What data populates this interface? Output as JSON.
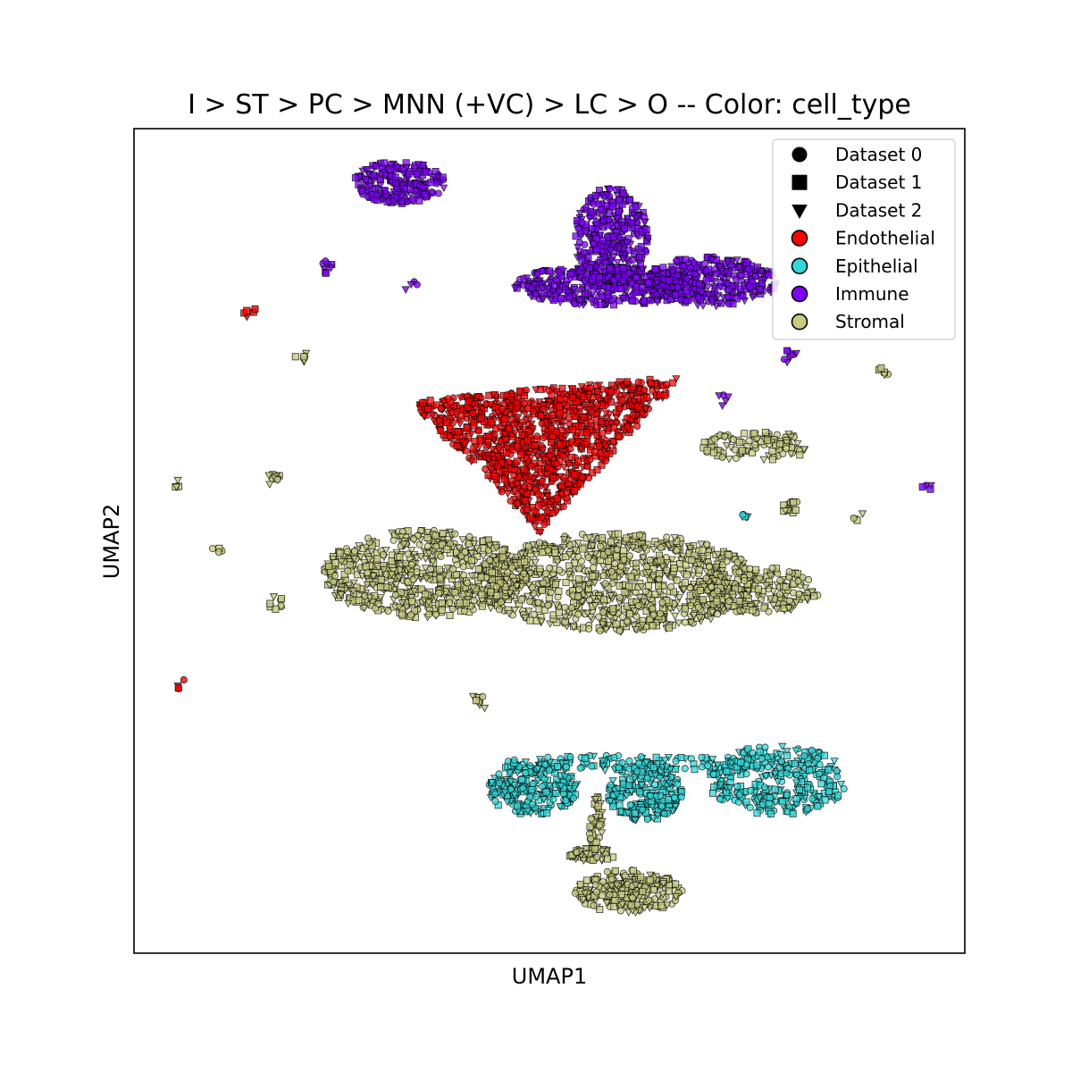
{
  "chart_data": {
    "type": "scatter",
    "title": "I > ST > PC > MNN (+VC) > LC > O -- Color: cell_type",
    "xlabel": "UMAP1",
    "ylabel": "UMAP2",
    "xlim": [
      0,
      100
    ],
    "ylim": [
      0,
      100
    ],
    "grid": false,
    "ticks": "none",
    "legend_placement": "top-right",
    "legend": {
      "markers": [
        {
          "label": "Dataset 0",
          "shape": "circle"
        },
        {
          "label": "Dataset 1",
          "shape": "square"
        },
        {
          "label": "Dataset 2",
          "shape": "triangle-down"
        }
      ],
      "colors": [
        {
          "label": "Endothelial",
          "color": "#ff0000"
        },
        {
          "label": "Epithelial",
          "color": "#30d8d8"
        },
        {
          "label": "Immune",
          "color": "#7f00ff"
        },
        {
          "label": "Stromal",
          "color": "#c8cc80"
        }
      ]
    },
    "clusters": [
      {
        "cell_type": "Immune",
        "shape": "ellipse",
        "cx": 32,
        "cy": 93.5,
        "rx": 5.5,
        "ry": 2.6,
        "n": 220
      },
      {
        "cell_type": "Immune",
        "shape": "ellipse",
        "cx": 57,
        "cy": 81,
        "rx": 11.5,
        "ry": 2.4,
        "n": 420
      },
      {
        "cell_type": "Immune",
        "shape": "ellipse",
        "cx": 57.5,
        "cy": 86.5,
        "rx": 4.5,
        "ry": 6.5,
        "n": 360
      },
      {
        "cell_type": "Immune",
        "shape": "ellipse",
        "cx": 69.5,
        "cy": 81.5,
        "rx": 8,
        "ry": 3,
        "n": 320
      },
      {
        "cell_type": "Endothelial",
        "shape": "triangle",
        "p": [
          [
            33,
            67
          ],
          [
            66,
            70
          ],
          [
            49,
            51
          ]
        ],
        "n": 1100
      },
      {
        "cell_type": "Stromal",
        "shape": "ellipse",
        "cx": 35,
        "cy": 46,
        "rx": 12.5,
        "ry": 5.3,
        "n": 650
      },
      {
        "cell_type": "Stromal",
        "shape": "ellipse",
        "cx": 58,
        "cy": 45,
        "rx": 17,
        "ry": 6,
        "n": 900
      },
      {
        "cell_type": "Stromal",
        "shape": "ellipse",
        "cx": 75,
        "cy": 44,
        "rx": 7.5,
        "ry": 2.8,
        "n": 200
      },
      {
        "cell_type": "Stromal",
        "shape": "ellipse",
        "cx": 75,
        "cy": 61.5,
        "rx": 7,
        "ry": 1.8,
        "n": 110
      },
      {
        "cell_type": "Epithelial",
        "shape": "ellipse",
        "cx": 48,
        "cy": 20,
        "rx": 5.5,
        "ry": 3.2,
        "n": 230
      },
      {
        "cell_type": "Epithelial",
        "shape": "ellipse",
        "cx": 61.5,
        "cy": 19.5,
        "rx": 4.5,
        "ry": 3.6,
        "n": 210
      },
      {
        "cell_type": "Epithelial",
        "shape": "ellipse",
        "cx": 77.5,
        "cy": 21,
        "rx": 8.5,
        "ry": 4.2,
        "n": 330
      },
      {
        "cell_type": "Epithelial",
        "shape": "ellipse",
        "cx": 59,
        "cy": 23,
        "rx": 15,
        "ry": 1.0,
        "n": 120
      },
      {
        "cell_type": "Stromal",
        "shape": "ellipse",
        "cx": 59.5,
        "cy": 7.5,
        "rx": 6.5,
        "ry": 2.6,
        "n": 230
      },
      {
        "cell_type": "Stromal",
        "shape": "ellipse",
        "cx": 55,
        "cy": 12,
        "rx": 3,
        "ry": 0.8,
        "n": 50
      },
      {
        "cell_type": "Stromal",
        "shape": "ellipse",
        "cx": 55.5,
        "cy": 16,
        "rx": 0.9,
        "ry": 3.5,
        "n": 40
      }
    ],
    "small_groups": [
      {
        "cell_type": "Immune",
        "x": 23.5,
        "y": 83.2,
        "n": 8
      },
      {
        "cell_type": "Immune",
        "x": 33.5,
        "y": 81,
        "n": 4
      },
      {
        "cell_type": "Endothelial",
        "x": 14,
        "y": 77.5,
        "n": 5
      },
      {
        "cell_type": "Stromal",
        "x": 20,
        "y": 72.5,
        "n": 6
      },
      {
        "cell_type": "Stromal",
        "x": 17,
        "y": 57.5,
        "n": 10
      },
      {
        "cell_type": "Stromal",
        "x": 5,
        "y": 57,
        "n": 4
      },
      {
        "cell_type": "Stromal",
        "x": 10,
        "y": 49,
        "n": 4
      },
      {
        "cell_type": "Stromal",
        "x": 17,
        "y": 42.5,
        "n": 8
      },
      {
        "cell_type": "Endothelial",
        "x": 5.8,
        "y": 32.7,
        "n": 4
      },
      {
        "cell_type": "Stromal",
        "x": 41.5,
        "y": 30.5,
        "n": 8
      },
      {
        "cell_type": "Immune",
        "x": 79,
        "y": 72.5,
        "n": 8
      },
      {
        "cell_type": "Immune",
        "x": 71,
        "y": 67,
        "n": 5
      },
      {
        "cell_type": "Stromal",
        "x": 90,
        "y": 70.5,
        "n": 5
      },
      {
        "cell_type": "Immune",
        "x": 95.5,
        "y": 56.5,
        "n": 4
      },
      {
        "cell_type": "Stromal",
        "x": 87,
        "y": 53,
        "n": 4
      },
      {
        "cell_type": "Stromal",
        "x": 79,
        "y": 54,
        "n": 14
      },
      {
        "cell_type": "Epithelial",
        "x": 74,
        "y": 53.5,
        "n": 5
      }
    ]
  }
}
